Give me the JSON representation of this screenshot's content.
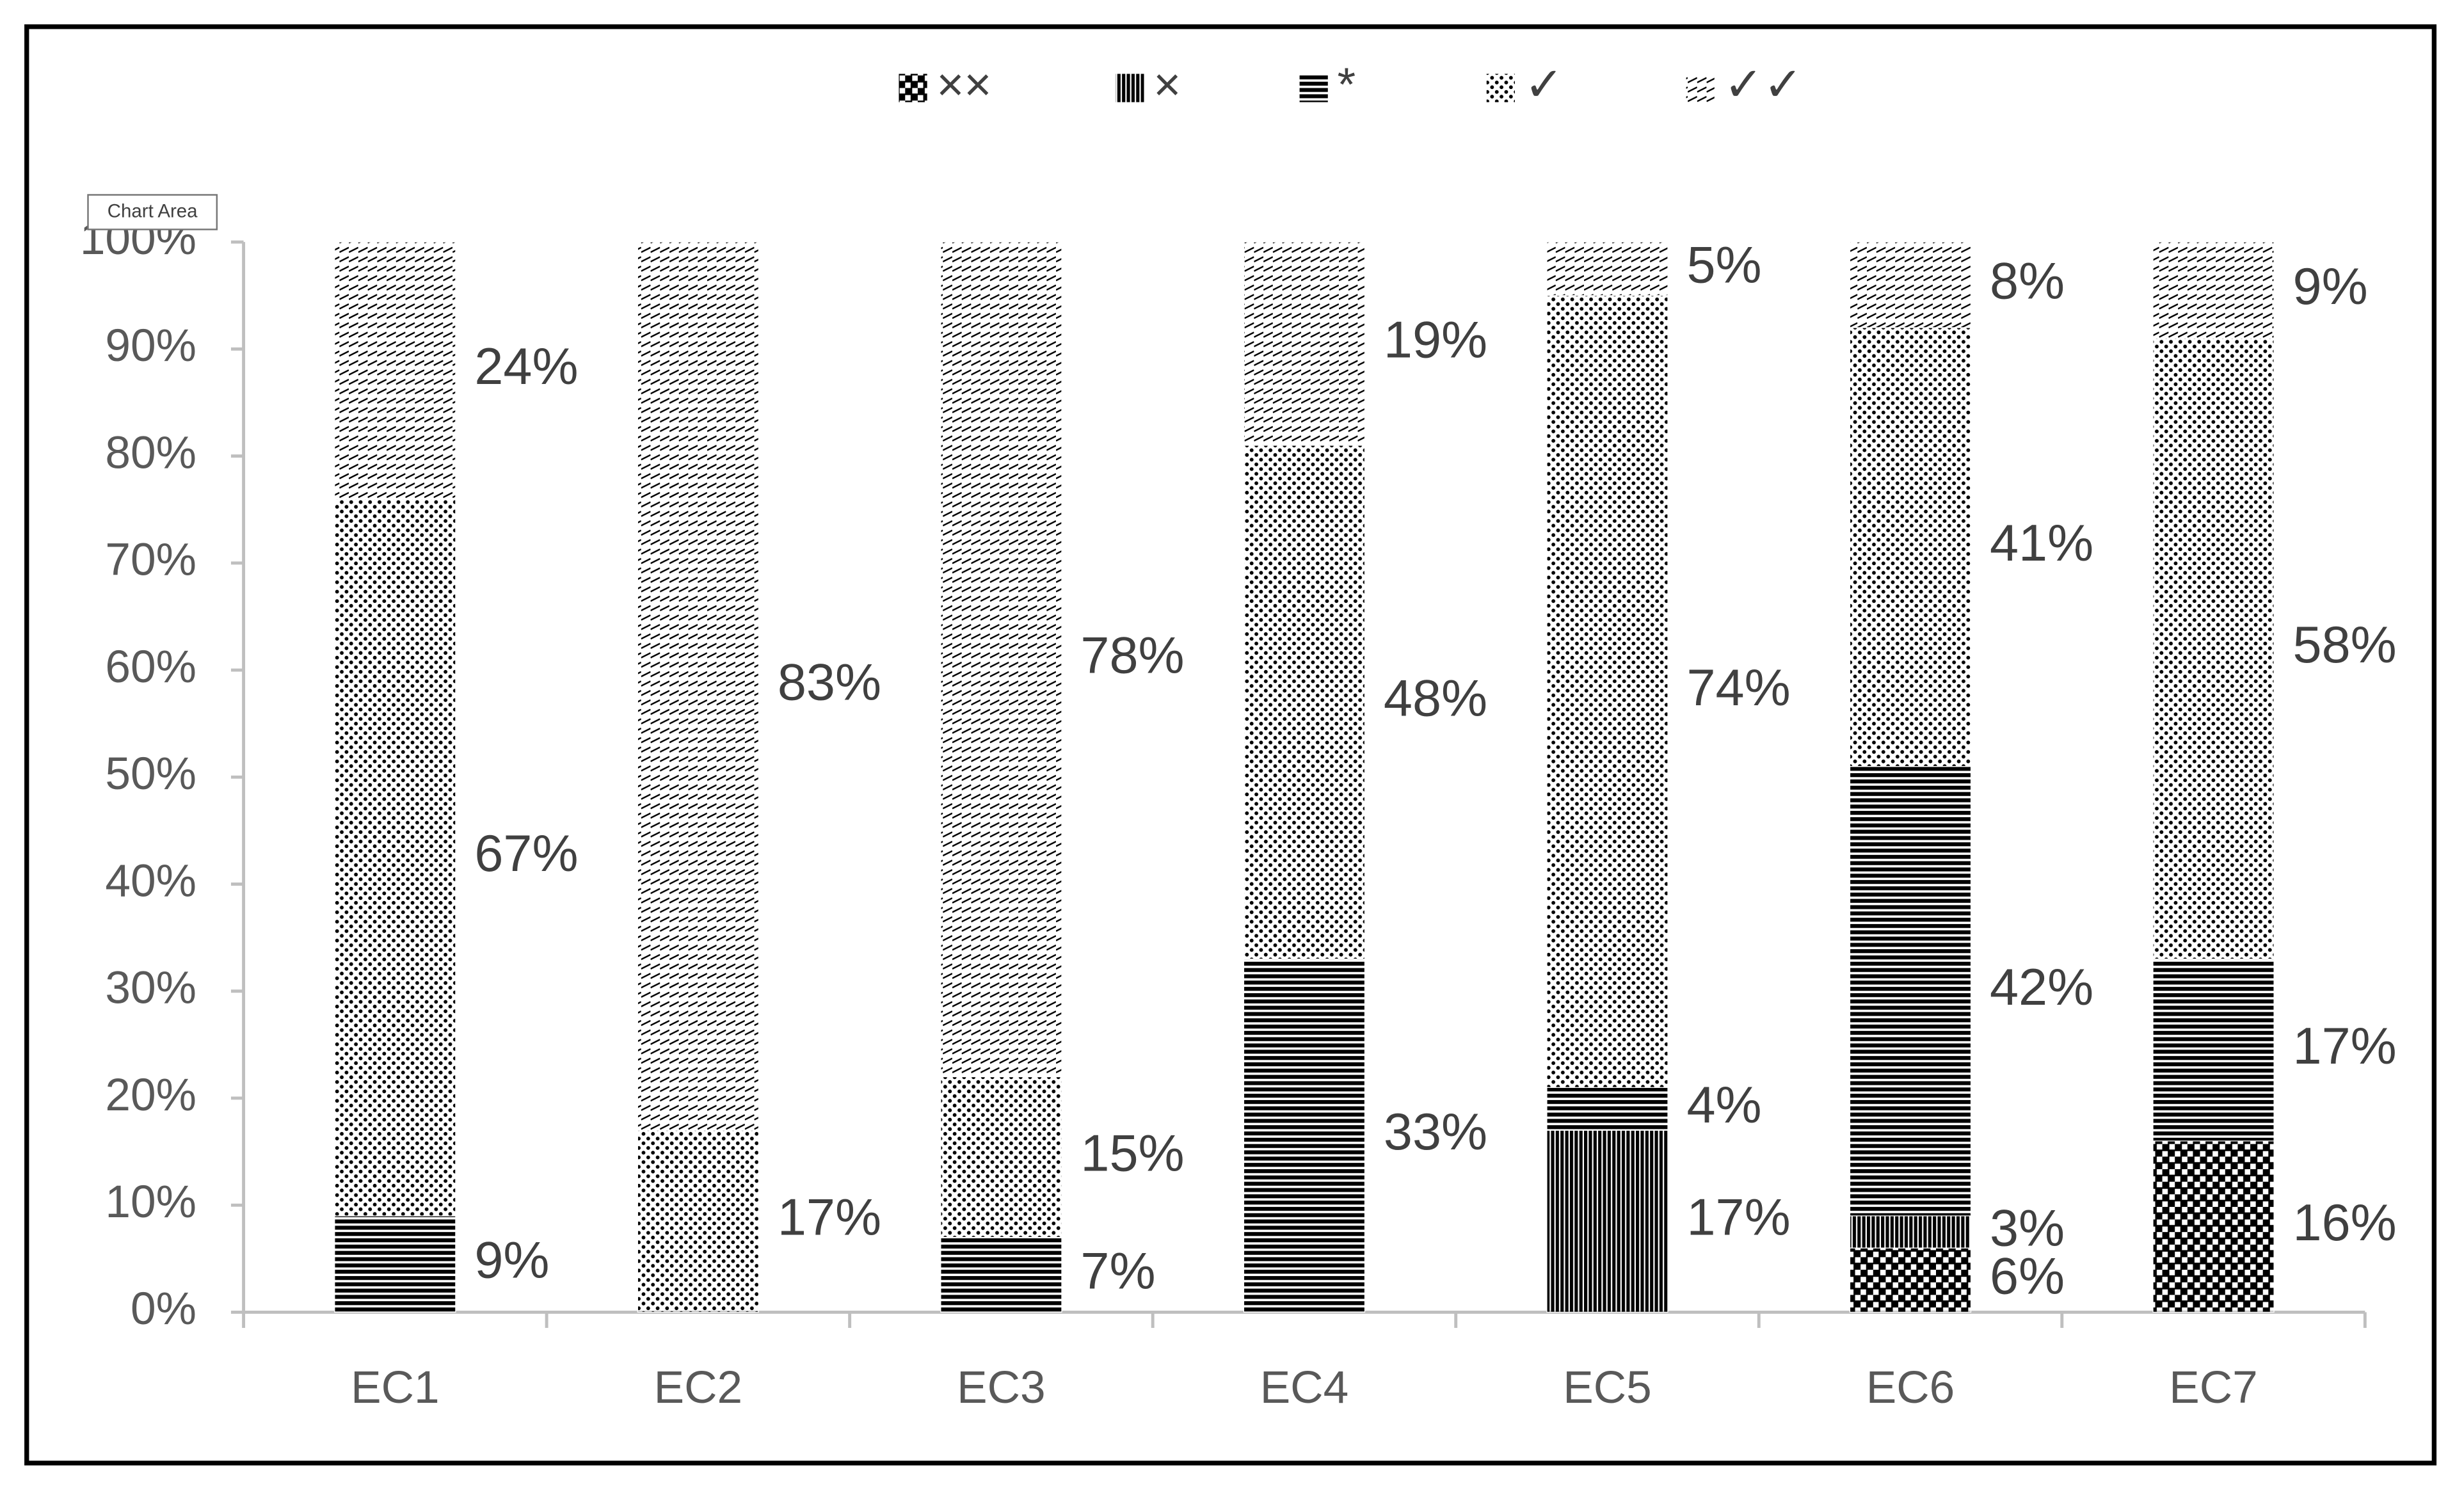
{
  "chart_data": {
    "type": "stacked-bar",
    "tooltip": "Chart Area",
    "categories": [
      "EC1",
      "EC2",
      "EC3",
      "EC4",
      "EC5",
      "EC6",
      "EC7"
    ],
    "series": [
      {
        "name": "××",
        "color": "#000000",
        "values": [
          null,
          null,
          null,
          null,
          null,
          6,
          16
        ],
        "value_labels": [
          null,
          null,
          null,
          null,
          null,
          "6%",
          "16%"
        ]
      },
      {
        "name": "×",
        "color": "#000000",
        "values": [
          null,
          null,
          null,
          null,
          17,
          3,
          null
        ],
        "value_labels": [
          null,
          null,
          null,
          null,
          "17%",
          "3%",
          null
        ]
      },
      {
        "name": "*",
        "color": "#000000",
        "values": [
          9,
          null,
          7,
          33,
          4,
          42,
          17
        ],
        "value_labels": [
          "9%",
          null,
          "7%",
          "33%",
          "4%",
          "42%",
          "17%"
        ]
      },
      {
        "name": "✓",
        "color": "#000000",
        "values": [
          67,
          17,
          15,
          48,
          74,
          41,
          58
        ],
        "value_labels": [
          "67%",
          "17%",
          "15%",
          "48%",
          "74%",
          "41%",
          "58%"
        ]
      },
      {
        "name": "✓✓",
        "color": "#000000",
        "values": [
          24,
          83,
          78,
          19,
          5,
          8,
          9
        ],
        "value_labels": [
          "24%",
          "83%",
          "78%",
          "19%",
          "5%",
          "8%",
          "9%"
        ]
      }
    ],
    "ylim": [
      0,
      100
    ],
    "yticks": [
      {
        "value": 0,
        "label": "0%"
      },
      {
        "value": 10,
        "label": "10%"
      },
      {
        "value": 20,
        "label": "20%"
      },
      {
        "value": 30,
        "label": "30%"
      },
      {
        "value": 40,
        "label": "40%"
      },
      {
        "value": 50,
        "label": "50%"
      },
      {
        "value": 60,
        "label": "60%"
      },
      {
        "value": 70,
        "label": "70%"
      },
      {
        "value": 80,
        "label": "80%"
      },
      {
        "value": 90,
        "label": "90%"
      },
      {
        "value": 100,
        "label": "100%"
      }
    ],
    "grid": false,
    "legend": "top"
  }
}
